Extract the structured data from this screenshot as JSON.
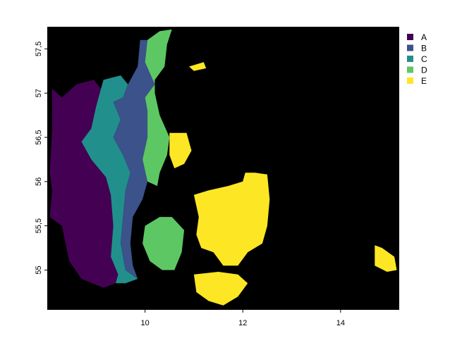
{
  "chart_data": {
    "type": "heatmap",
    "title": "",
    "xlabel": "",
    "ylabel": "",
    "xlim": [
      8.0,
      15.2
    ],
    "ylim": [
      54.55,
      57.75
    ],
    "x_ticks": [
      {
        "value": 10,
        "label": "10"
      },
      {
        "value": 12,
        "label": "12"
      },
      {
        "value": 14,
        "label": "14"
      }
    ],
    "y_ticks": [
      {
        "value": 55,
        "label": "55"
      },
      {
        "value": 55.5,
        "label": "55,5"
      },
      {
        "value": 56,
        "label": "56"
      },
      {
        "value": 56.5,
        "label": "56,5"
      },
      {
        "value": 57,
        "label": "57"
      },
      {
        "value": 57.5,
        "label": "57,5"
      }
    ],
    "background_color": "#000000",
    "legend_position": "right",
    "classes": [
      {
        "label": "A",
        "color": "#440154"
      },
      {
        "label": "B",
        "color": "#3B528B"
      },
      {
        "label": "C",
        "color": "#21908C"
      },
      {
        "label": "D",
        "color": "#5DC863"
      },
      {
        "label": "E",
        "color": "#FDE725"
      }
    ],
    "regions": [
      {
        "class": "A",
        "polygon": [
          [
            8.1,
            57.05
          ],
          [
            8.3,
            56.95
          ],
          [
            8.6,
            57.1
          ],
          [
            8.95,
            57.15
          ],
          [
            9.1,
            57.05
          ],
          [
            9.0,
            56.85
          ],
          [
            8.9,
            56.6
          ],
          [
            8.7,
            56.45
          ],
          [
            8.9,
            56.25
          ],
          [
            9.2,
            56.05
          ],
          [
            9.3,
            55.85
          ],
          [
            9.35,
            55.5
          ],
          [
            9.3,
            55.15
          ],
          [
            9.45,
            54.95
          ],
          [
            9.4,
            54.85
          ],
          [
            9.15,
            54.8
          ],
          [
            8.7,
            54.9
          ],
          [
            8.45,
            55.1
          ],
          [
            8.3,
            55.5
          ],
          [
            8.05,
            55.6
          ],
          [
            8.1,
            55.9
          ],
          [
            8.05,
            56.1
          ],
          [
            8.1,
            56.6
          ]
        ]
      },
      {
        "class": "C",
        "polygon": [
          [
            9.1,
            57.05
          ],
          [
            9.15,
            57.15
          ],
          [
            9.5,
            57.2
          ],
          [
            9.65,
            57.1
          ],
          [
            9.55,
            56.95
          ],
          [
            9.35,
            56.9
          ],
          [
            9.5,
            56.7
          ],
          [
            9.35,
            56.5
          ],
          [
            9.55,
            56.3
          ],
          [
            9.7,
            56.1
          ],
          [
            9.6,
            55.9
          ],
          [
            9.55,
            55.6
          ],
          [
            9.5,
            55.3
          ],
          [
            9.6,
            55.0
          ],
          [
            9.85,
            54.9
          ],
          [
            9.6,
            54.85
          ],
          [
            9.4,
            54.85
          ],
          [
            9.45,
            54.95
          ],
          [
            9.3,
            55.15
          ],
          [
            9.35,
            55.5
          ],
          [
            9.3,
            55.85
          ],
          [
            9.2,
            56.05
          ],
          [
            8.9,
            56.25
          ],
          [
            8.7,
            56.45
          ],
          [
            8.9,
            56.6
          ],
          [
            9.0,
            56.85
          ]
        ]
      },
      {
        "class": "B",
        "polygon": [
          [
            9.65,
            57.1
          ],
          [
            9.85,
            57.3
          ],
          [
            9.9,
            57.6
          ],
          [
            10.05,
            57.6
          ],
          [
            10.0,
            57.35
          ],
          [
            10.2,
            57.1
          ],
          [
            10.0,
            56.95
          ],
          [
            10.05,
            56.8
          ],
          [
            10.05,
            56.5
          ],
          [
            9.95,
            56.25
          ],
          [
            10.05,
            56.0
          ],
          [
            9.95,
            55.8
          ],
          [
            9.85,
            55.7
          ],
          [
            9.75,
            55.6
          ],
          [
            9.7,
            55.3
          ],
          [
            9.75,
            55.05
          ],
          [
            9.85,
            54.9
          ],
          [
            9.6,
            55.0
          ],
          [
            9.5,
            55.3
          ],
          [
            9.55,
            55.6
          ],
          [
            9.6,
            55.9
          ],
          [
            9.7,
            56.1
          ],
          [
            9.55,
            56.3
          ],
          [
            9.35,
            56.5
          ],
          [
            9.5,
            56.7
          ],
          [
            9.35,
            56.9
          ],
          [
            9.55,
            56.95
          ]
        ]
      },
      {
        "class": "D",
        "polygon": [
          [
            10.05,
            57.6
          ],
          [
            10.3,
            57.7
          ],
          [
            10.55,
            57.72
          ],
          [
            10.45,
            57.55
          ],
          [
            10.4,
            57.3
          ],
          [
            10.2,
            57.15
          ],
          [
            10.2,
            57.0
          ],
          [
            10.3,
            56.75
          ],
          [
            10.5,
            56.5
          ],
          [
            10.45,
            56.3
          ],
          [
            10.3,
            56.1
          ],
          [
            10.25,
            55.95
          ],
          [
            10.05,
            56.0
          ],
          [
            9.95,
            56.25
          ],
          [
            10.05,
            56.5
          ],
          [
            10.05,
            56.8
          ],
          [
            10.0,
            56.95
          ],
          [
            10.2,
            57.1
          ],
          [
            10.0,
            57.35
          ]
        ]
      },
      {
        "class": "D",
        "polygon": [
          [
            10.0,
            55.5
          ],
          [
            10.3,
            55.6
          ],
          [
            10.55,
            55.6
          ],
          [
            10.8,
            55.45
          ],
          [
            10.75,
            55.2
          ],
          [
            10.6,
            55.0
          ],
          [
            10.35,
            55.0
          ],
          [
            10.1,
            55.1
          ],
          [
            9.95,
            55.3
          ]
        ]
      },
      {
        "class": "E",
        "polygon": [
          [
            10.5,
            56.55
          ],
          [
            10.85,
            56.55
          ],
          [
            10.95,
            56.35
          ],
          [
            10.8,
            56.2
          ],
          [
            10.6,
            56.15
          ],
          [
            10.5,
            56.3
          ]
        ]
      },
      {
        "class": "E",
        "polygon": [
          [
            10.9,
            57.3
          ],
          [
            11.2,
            57.35
          ],
          [
            11.25,
            57.28
          ],
          [
            11.0,
            57.25
          ]
        ]
      },
      {
        "class": "E",
        "polygon": [
          [
            11.0,
            55.85
          ],
          [
            11.3,
            55.9
          ],
          [
            11.7,
            55.95
          ],
          [
            12.0,
            56.0
          ],
          [
            12.05,
            56.1
          ],
          [
            12.25,
            56.1
          ],
          [
            12.5,
            56.08
          ],
          [
            12.55,
            55.8
          ],
          [
            12.5,
            55.5
          ],
          [
            12.4,
            55.3
          ],
          [
            12.1,
            55.2
          ],
          [
            11.9,
            55.05
          ],
          [
            11.6,
            55.05
          ],
          [
            11.4,
            55.2
          ],
          [
            11.15,
            55.25
          ],
          [
            11.05,
            55.4
          ],
          [
            11.1,
            55.6
          ]
        ]
      },
      {
        "class": "E",
        "polygon": [
          [
            11.0,
            54.95
          ],
          [
            11.5,
            54.98
          ],
          [
            11.9,
            54.95
          ],
          [
            12.1,
            54.85
          ],
          [
            11.9,
            54.7
          ],
          [
            11.6,
            54.6
          ],
          [
            11.3,
            54.65
          ],
          [
            11.05,
            54.75
          ]
        ]
      },
      {
        "class": "E",
        "polygon": [
          [
            14.7,
            55.28
          ],
          [
            14.85,
            55.25
          ],
          [
            15.1,
            55.15
          ],
          [
            15.15,
            55.0
          ],
          [
            14.95,
            54.98
          ],
          [
            14.7,
            55.05
          ]
        ]
      }
    ]
  }
}
